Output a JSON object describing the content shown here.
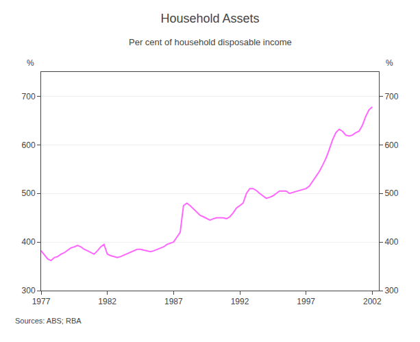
{
  "chart_data": {
    "type": "line",
    "title": "Household Assets",
    "subtitle": "Per cent of household disposable income",
    "ylabel": "%",
    "y2label": "%",
    "annotations": [
      "Sources: ABS; RBA"
    ],
    "color": "#FF66FF",
    "grid": true,
    "xlim": [
      1977,
      2002.5
    ],
    "xticks": [
      1977,
      1982,
      1987,
      1992,
      1997,
      2002
    ],
    "ylim": [
      300,
      750
    ],
    "yticks": [
      300,
      400,
      500,
      600,
      700
    ],
    "y2lim": [
      300,
      750
    ],
    "y2ticks": [
      300,
      400,
      500,
      600,
      700
    ],
    "x": [
      1977.0,
      1977.25,
      1977.5,
      1977.75,
      1978.0,
      1978.25,
      1978.5,
      1978.75,
      1979.0,
      1979.25,
      1979.5,
      1979.75,
      1980.0,
      1980.25,
      1980.5,
      1980.75,
      1981.0,
      1981.25,
      1981.5,
      1981.75,
      1982.0,
      1982.25,
      1982.5,
      1982.75,
      1983.0,
      1983.25,
      1983.5,
      1983.75,
      1984.0,
      1984.25,
      1984.5,
      1984.75,
      1985.0,
      1985.25,
      1985.5,
      1985.75,
      1986.0,
      1986.25,
      1986.5,
      1986.75,
      1987.0,
      1987.25,
      1987.5,
      1987.75,
      1988.0,
      1988.25,
      1988.5,
      1988.75,
      1989.0,
      1989.25,
      1989.5,
      1989.75,
      1990.0,
      1990.25,
      1990.5,
      1990.75,
      1991.0,
      1991.25,
      1991.5,
      1991.75,
      1992.0,
      1992.25,
      1992.5,
      1992.75,
      1993.0,
      1993.25,
      1993.5,
      1993.75,
      1994.0,
      1994.25,
      1994.5,
      1994.75,
      1995.0,
      1995.25,
      1995.5,
      1995.75,
      1996.0,
      1996.25,
      1996.5,
      1996.75,
      1997.0,
      1997.25,
      1997.5,
      1997.75,
      1998.0,
      1998.25,
      1998.5,
      1998.75,
      1999.0,
      1999.25,
      1999.5,
      1999.75,
      2000.0,
      2000.25,
      2000.5,
      2000.75,
      2001.0,
      2001.25,
      2001.5,
      2001.75,
      2002.0
    ],
    "values": [
      382,
      374,
      365,
      362,
      368,
      370,
      375,
      378,
      383,
      388,
      390,
      393,
      390,
      385,
      382,
      378,
      375,
      382,
      390,
      395,
      375,
      372,
      370,
      368,
      370,
      373,
      375,
      378,
      382,
      385,
      385,
      383,
      382,
      380,
      382,
      385,
      387,
      390,
      395,
      398,
      400,
      410,
      420,
      475,
      480,
      475,
      468,
      462,
      455,
      452,
      448,
      445,
      448,
      450,
      450,
      450,
      448,
      452,
      460,
      470,
      475,
      480,
      500,
      510,
      510,
      506,
      500,
      495,
      490,
      492,
      495,
      500,
      505,
      505,
      505,
      500,
      502,
      504,
      506,
      508,
      510,
      515,
      525,
      535,
      545,
      558,
      572,
      590,
      610,
      625,
      632,
      628,
      620,
      618,
      620,
      625,
      628,
      640,
      658,
      672,
      678
    ]
  }
}
